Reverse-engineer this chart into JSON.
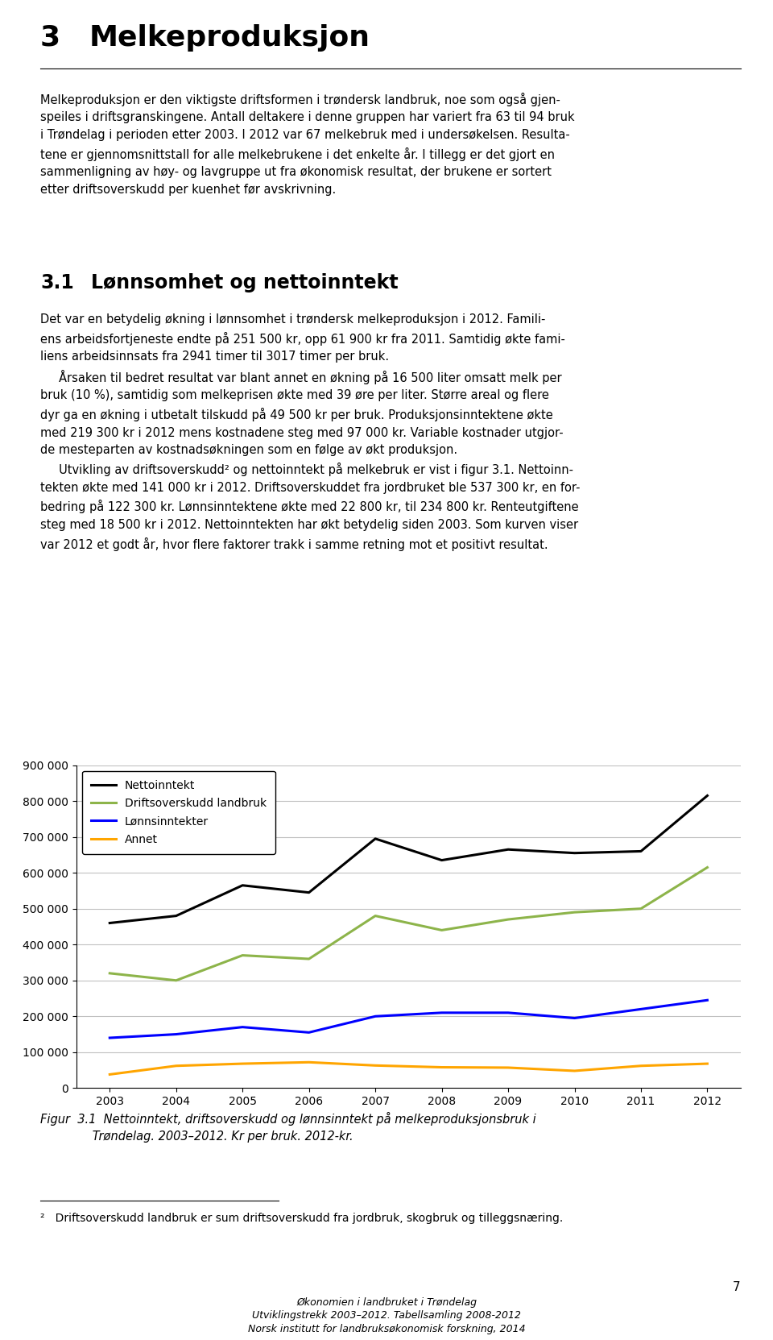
{
  "years": [
    2003,
    2004,
    2005,
    2006,
    2007,
    2008,
    2009,
    2010,
    2011,
    2012
  ],
  "series": [
    {
      "label": "Nettoinntekt",
      "color": "#000000",
      "linewidth": 2.2,
      "values": [
        460000,
        480000,
        565000,
        545000,
        695000,
        635000,
        665000,
        655000,
        660000,
        815000
      ]
    },
    {
      "label": "Driftsoverskudd landbruk",
      "color": "#8DB44A",
      "linewidth": 2.2,
      "values": [
        320000,
        300000,
        370000,
        360000,
        480000,
        440000,
        470000,
        490000,
        500000,
        615000
      ]
    },
    {
      "label": "Lønnsinntekter",
      "color": "#0000FF",
      "linewidth": 2.2,
      "values": [
        140000,
        150000,
        170000,
        155000,
        200000,
        210000,
        210000,
        195000,
        220000,
        245000
      ]
    },
    {
      "label": "Annet",
      "color": "#FFA500",
      "linewidth": 2.2,
      "values": [
        38000,
        62000,
        68000,
        72000,
        63000,
        58000,
        57000,
        48000,
        62000,
        68000
      ]
    }
  ],
  "ylim": [
    0,
    900000
  ],
  "yticks": [
    0,
    100000,
    200000,
    300000,
    400000,
    500000,
    600000,
    700000,
    800000,
    900000
  ],
  "ytick_labels": [
    "0",
    "100 000",
    "200 000",
    "300 000",
    "400 000",
    "500 000",
    "600 000",
    "700 000",
    "800 000",
    "900 000"
  ],
  "grid_color": "#C0C0C0",
  "page_background": "#FFFFFF",
  "figure_width": 9.6,
  "figure_height": 16.63
}
